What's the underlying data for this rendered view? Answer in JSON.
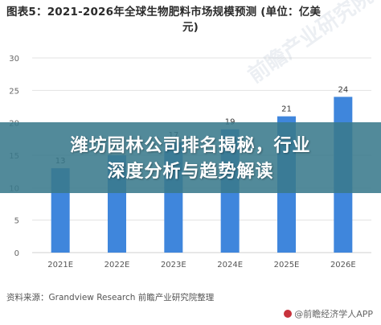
{
  "title_line1": "图表5：2021-2026年全球生物肥料市场规模预测 (单位：亿美",
  "title_line2": "元)",
  "banner_line1": "潍坊园林公司排名揭秘，行业",
  "banner_line2": "深度分析与趋势解读",
  "source": "资料来源：Grandview Research 前瞻产业研究院整理",
  "watermark_diag": "前瞻产业研究院",
  "watermark_foot": "@前瞻经济学人APP",
  "colors": {
    "bar": "#3f86dc",
    "grid": "#e3e3e3",
    "banner": "#3a7a8c"
  },
  "chart_data": {
    "type": "bar",
    "categories": [
      "2021E",
      "2022E",
      "2023E",
      "2024E",
      "2025E",
      "2026E"
    ],
    "values": [
      13,
      15,
      17,
      19,
      21,
      24
    ],
    "data_labels": [
      "13",
      "15",
      "17",
      "19",
      "21",
      "24"
    ],
    "title": "图表5：2021-2026年全球生物肥料市场规模预测 (单位：亿美元)",
    "ylim": [
      0,
      30
    ],
    "yticks": [
      "0",
      "5",
      "10",
      "15",
      "20",
      "25",
      "30"
    ],
    "grid": true
  }
}
